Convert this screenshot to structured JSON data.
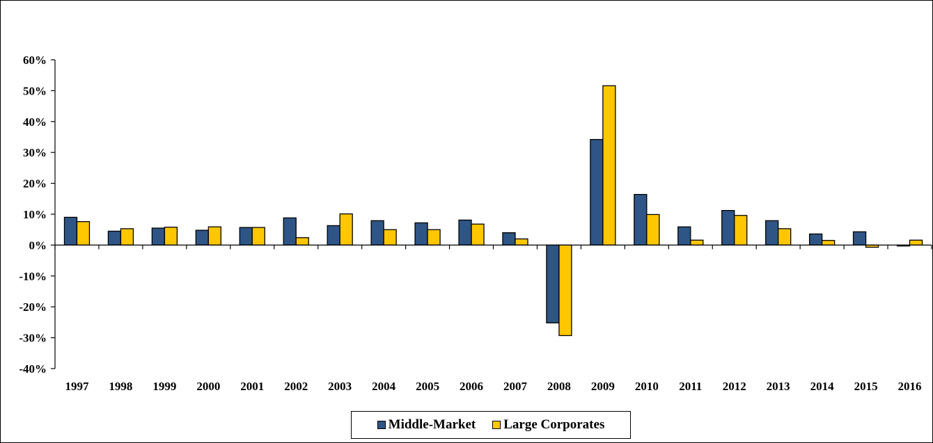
{
  "chart_data": {
    "type": "bar",
    "title": "",
    "xlabel": "",
    "ylabel": "",
    "ylim": [
      -40,
      60
    ],
    "ytick_step": 10,
    "ytick_labels": [
      "-40%",
      "-30%",
      "-20%",
      "-10%",
      "0%",
      "10%",
      "20%",
      "30%",
      "40%",
      "50%",
      "60%"
    ],
    "categories": [
      "1997",
      "1998",
      "1999",
      "2000",
      "2001",
      "2002",
      "2003",
      "2004",
      "2005",
      "2006",
      "2007",
      "2008",
      "2009",
      "2010",
      "2011",
      "2012",
      "2013",
      "2014",
      "2015",
      "2016"
    ],
    "series": [
      {
        "name": "Middle-Market",
        "color": "#2e5585",
        "values": [
          9.0,
          4.5,
          5.5,
          4.8,
          5.7,
          8.8,
          6.3,
          7.9,
          7.2,
          8.1,
          4.0,
          -25.2,
          34.2,
          16.4,
          5.9,
          11.2,
          7.9,
          3.6,
          4.3,
          -0.3
        ]
      },
      {
        "name": "Large Corporates",
        "color": "#ffc700",
        "values": [
          7.6,
          5.3,
          5.8,
          5.9,
          5.7,
          2.4,
          10.1,
          5.0,
          5.0,
          6.8,
          2.0,
          -29.3,
          51.6,
          9.9,
          1.6,
          9.6,
          5.3,
          1.5,
          -0.7,
          1.6
        ]
      }
    ],
    "legend_position": "bottom"
  }
}
